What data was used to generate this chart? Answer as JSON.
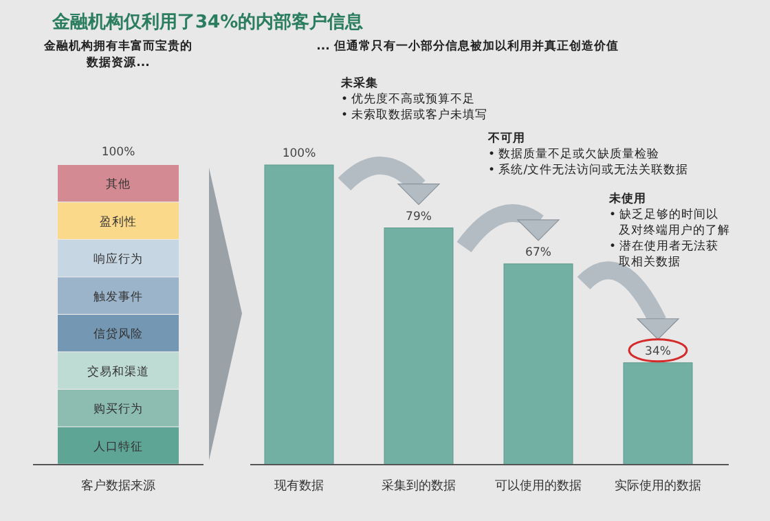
{
  "chart_data": [
    {
      "type": "other",
      "title": "金融机构仅利用了34%的内部客户信息",
      "subtitle": "金融机构拥有丰富而宝贵的数据资源...",
      "xlabel": "客户数据来源",
      "annotations": [
        "100%"
      ],
      "categories": [
        "其他",
        "盈利性",
        "响应行为",
        "触发事件",
        "信贷风险",
        "交易和渠道",
        "购买行为",
        "人口特征"
      ],
      "colors": [
        "#d48a92",
        "#fbd98b",
        "#c7d6e3",
        "#9bb4c9",
        "#7497b3",
        "#bedcd3",
        "#8dbdb0",
        "#5fa595"
      ]
    },
    {
      "type": "bar",
      "subtitle": "... 但通常只有一小部分信息被加以利用并真正创造价值",
      "categories": [
        "现有数据",
        "采集到的数据",
        "可以使用的数据",
        "实际使用的数据"
      ],
      "values": [
        100,
        79,
        67,
        34
      ],
      "color": "#72b0a3",
      "value_labels": [
        "100%",
        "79%",
        "67%",
        "34%"
      ],
      "annotations": [
        "未采集\n• 优先度不高或预算不足\n• 未索取数据或客户未填写",
        "不可用\n• 数据质量不足或欠缺质量检验\n• 系统/文件无法访问或无法关联数据",
        "未使用\n• 缺乏足够的时间以及对终端用户的了解\n• 潜在使用者无法获取相关数据"
      ]
    }
  ]
}
